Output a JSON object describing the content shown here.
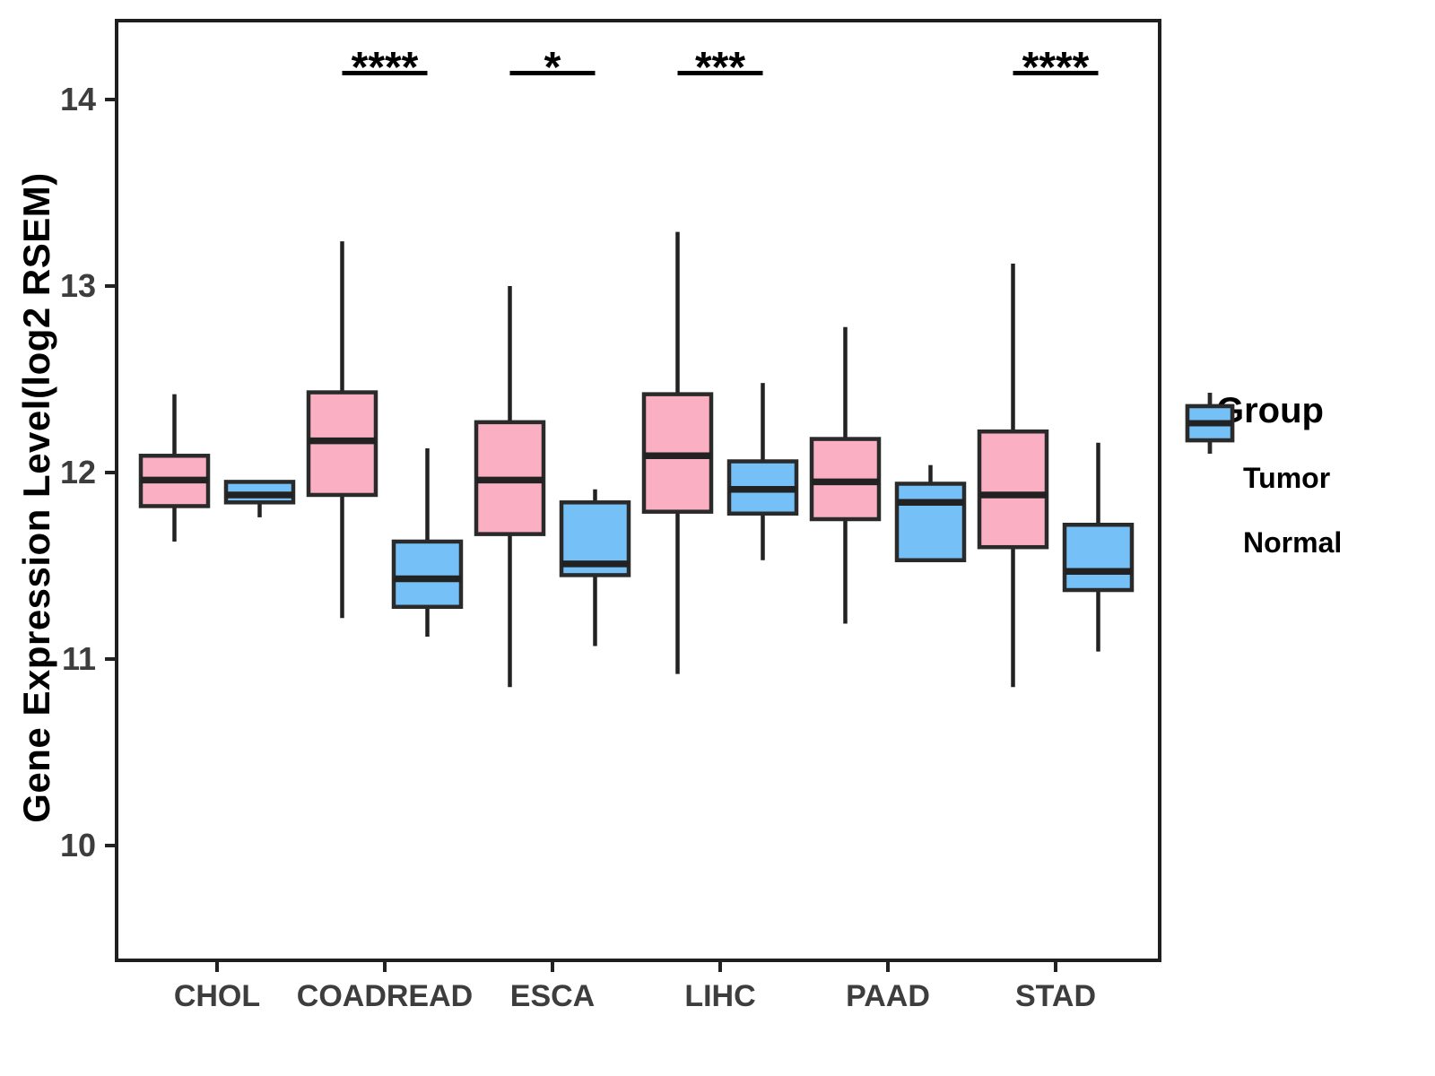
{
  "chart_data": {
    "type": "grouped_boxplot",
    "title": "",
    "xlabel": "",
    "ylabel": "Gene Expression Level(log2 RSEM)",
    "y_ticks": [
      14,
      13,
      12,
      11,
      10
    ],
    "y_range_shown": [
      9.38,
      14.42
    ],
    "grid": false,
    "categories": [
      "CHOL",
      "COADREAD",
      "ESCA",
      "LIHC",
      "PAAD",
      "STAD"
    ],
    "legend": {
      "title": "Group",
      "position": "right",
      "items": [
        {
          "label": "Tumor",
          "color": "#FBAFC3"
        },
        {
          "label": "Normal",
          "color": "#74C0F7"
        }
      ]
    },
    "series": [
      {
        "name": "Tumor",
        "color": "#FBAFC3",
        "boxes": [
          {
            "category": "CHOL",
            "min": 11.63,
            "q1": 11.82,
            "median": 11.96,
            "q3": 12.09,
            "max": 12.42
          },
          {
            "category": "COADREAD",
            "min": 11.22,
            "q1": 11.88,
            "median": 12.17,
            "q3": 12.43,
            "max": 13.24
          },
          {
            "category": "ESCA",
            "min": 10.85,
            "q1": 11.67,
            "median": 11.96,
            "q3": 12.27,
            "max": 13.0
          },
          {
            "category": "LIHC",
            "min": 10.92,
            "q1": 11.79,
            "median": 12.09,
            "q3": 12.42,
            "max": 13.29
          },
          {
            "category": "PAAD",
            "min": 11.19,
            "q1": 11.75,
            "median": 11.95,
            "q3": 12.18,
            "max": 12.78
          },
          {
            "category": "STAD",
            "min": 10.85,
            "q1": 11.6,
            "median": 11.88,
            "q3": 12.22,
            "max": 13.12
          }
        ]
      },
      {
        "name": "Normal",
        "color": "#74C0F7",
        "boxes": [
          {
            "category": "CHOL",
            "min": 11.76,
            "q1": 11.84,
            "median": 11.88,
            "q3": 11.95,
            "max": 11.95
          },
          {
            "category": "COADREAD",
            "min": 11.12,
            "q1": 11.28,
            "median": 11.43,
            "q3": 11.63,
            "max": 12.13
          },
          {
            "category": "ESCA",
            "min": 11.07,
            "q1": 11.45,
            "median": 11.51,
            "q3": 11.84,
            "max": 11.91
          },
          {
            "category": "LIHC",
            "min": 11.53,
            "q1": 11.78,
            "median": 11.91,
            "q3": 12.06,
            "max": 12.48
          },
          {
            "category": "PAAD",
            "min": 11.52,
            "q1": 11.53,
            "median": 11.84,
            "q3": 11.94,
            "max": 12.04
          },
          {
            "category": "STAD",
            "min": 11.04,
            "q1": 11.37,
            "median": 11.47,
            "q3": 11.72,
            "max": 12.16
          }
        ]
      }
    ],
    "significance": [
      {
        "category": "COADREAD",
        "label": "****"
      },
      {
        "category": "ESCA",
        "label": "*"
      },
      {
        "category": "LIHC",
        "label": "***"
      },
      {
        "category": "STAD",
        "label": "****"
      }
    ],
    "colors": {
      "box_border": "#2A2A2A",
      "whisker": "#222222",
      "median": "#222222",
      "panel_border": "#1F1F1F",
      "axis_text": "#3D3D3D",
      "significance": "#000000"
    }
  }
}
